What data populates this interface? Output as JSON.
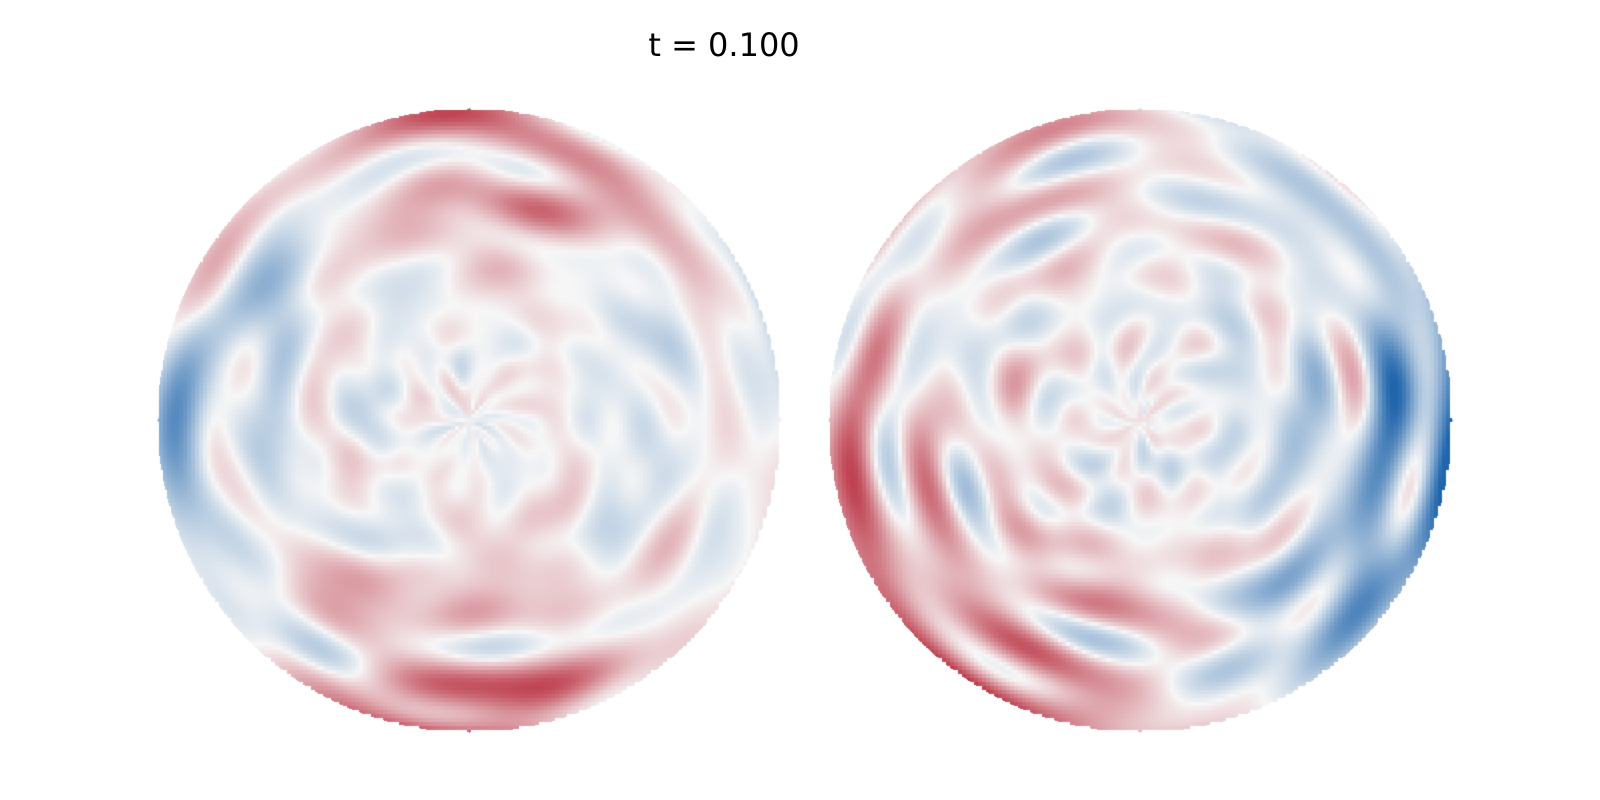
{
  "figure": {
    "time_label": "t = 0.100",
    "colormap": {
      "name": "RdBu_r",
      "negative_color": "#2166ac",
      "neutral_color": "#f7f7f7",
      "positive_color": "#b2182b"
    }
  },
  "panels": [
    {
      "name": "left-sphere-view"
    },
    {
      "name": "right-sphere-view"
    }
  ]
}
